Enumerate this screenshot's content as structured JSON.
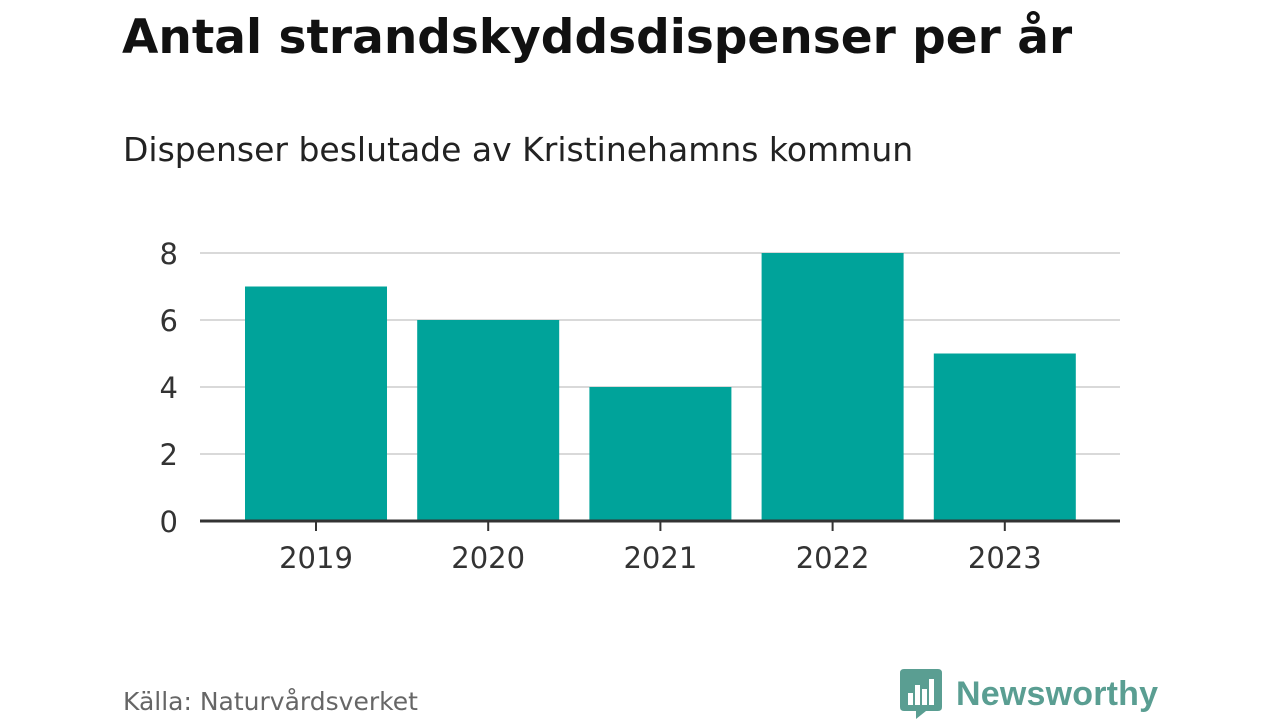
{
  "title": "Antal strandskyddsdispenser per år",
  "subtitle": "Dispenser beslutade av Kristinehamns kommun",
  "source": "Källa: Naturvårdsverket",
  "brand": {
    "name": "Newsworthy",
    "icon": "newsworthy-logo-icon",
    "color": "#5a9e92"
  },
  "colors": {
    "bar": "#00a39a",
    "grid": "#d9d9d9",
    "axis": "#333333",
    "tick_text": "#333333"
  },
  "chart_data": {
    "type": "bar",
    "title": "Antal strandskyddsdispenser per år",
    "subtitle": "Dispenser beslutade av Kristinehamns kommun",
    "categories": [
      "2019",
      "2020",
      "2021",
      "2022",
      "2023"
    ],
    "values": [
      7,
      6,
      4,
      8,
      5
    ],
    "xlabel": "",
    "ylabel": "",
    "ylim": [
      0,
      8
    ],
    "yticks": [
      0,
      2,
      4,
      6,
      8
    ],
    "grid": true,
    "legend": "none"
  }
}
